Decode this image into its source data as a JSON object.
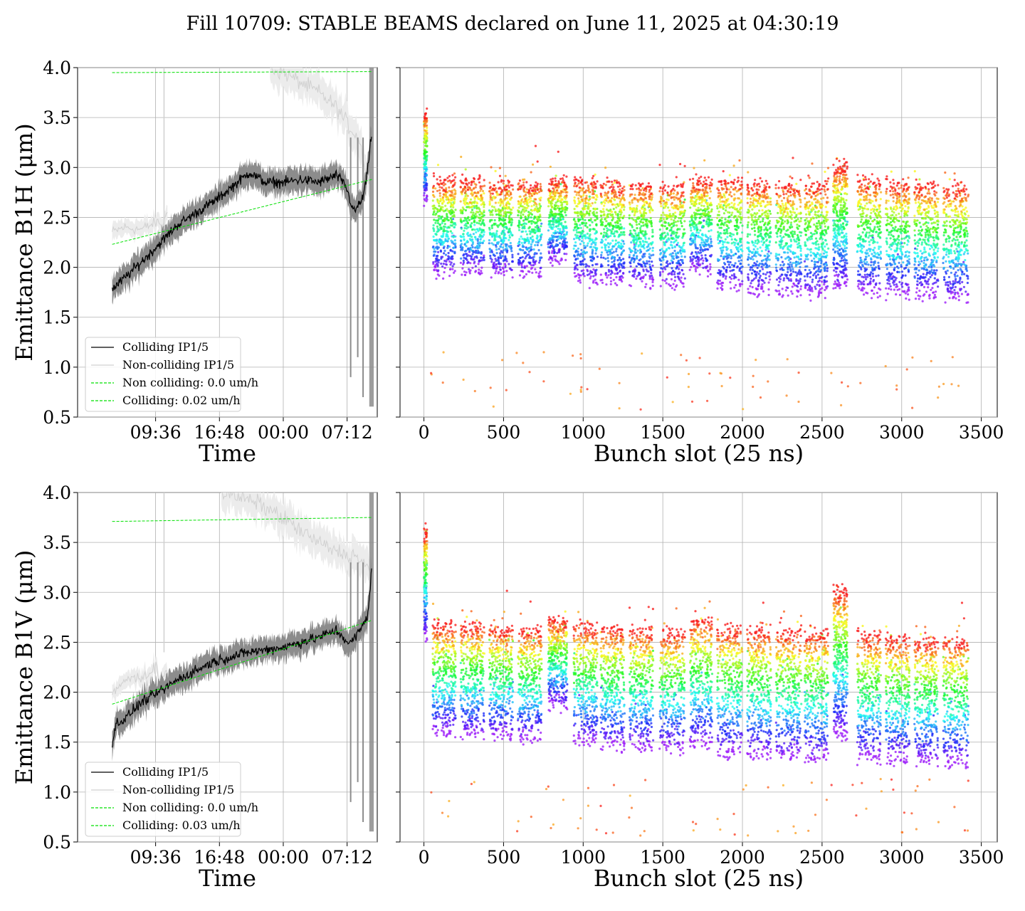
{
  "title": "Fill 10709: STABLE BEAMS declared on June 11, 2025 at 04:30:19",
  "colors": {
    "colliding": "#000000",
    "non_colliding": "#d0d0d0",
    "band_colliding": "#8c8c8c",
    "band_non_colliding": "#ececec",
    "fit": "#00e000",
    "grid": "#b0b0b0"
  },
  "chart_data": [
    {
      "type": "line",
      "panel": "time-B1H",
      "xlabel": "Time",
      "ylabel": "Emittance B1H (μm)",
      "ylim": [
        0.5,
        4.0
      ],
      "yticks": [
        "0.5",
        "1.0",
        "1.5",
        "2.0",
        "2.5",
        "3.0",
        "3.5",
        "4.0"
      ],
      "xticks": [
        "09:36",
        "16:48",
        "00:00",
        "07:12"
      ],
      "xtick_hours": [
        9.6,
        16.8,
        24.0,
        31.2
      ],
      "xlim_hours": [
        0.8,
        34.6
      ],
      "grid": true,
      "legend_position": "lower-left",
      "legend": [
        "Colliding IP1/5",
        "Non-colliding IP1/5",
        "Non colliding: 0.0 um/h",
        "Colliding: 0.02 um/h"
      ],
      "series": [
        {
          "name": "Colliding IP1/5",
          "x_hours": [
            4.7,
            6.2,
            9.0,
            12.0,
            16.5,
            20.2,
            22.0,
            24.0,
            26.0,
            28.0,
            30.0,
            31.0,
            32.0,
            33.0,
            33.5,
            34.0
          ],
          "values": [
            1.78,
            1.9,
            2.14,
            2.42,
            2.68,
            2.95,
            2.85,
            2.85,
            2.88,
            2.85,
            2.92,
            2.82,
            2.55,
            2.7,
            2.95,
            3.38
          ]
        },
        {
          "name": "Non-colliding IP1/5",
          "x_hours": [
            4.7,
            6.0,
            8.0,
            9.7,
            10.0,
            10.5,
            10.6,
            11.0
          ],
          "values": [
            2.35,
            2.4,
            2.38,
            2.45,
            2.45,
            2.4,
            2.47,
            2.6
          ]
        },
        {
          "name": "Non-colliding IP1/5 (upper)",
          "x_hours": [
            22.5,
            24.0,
            26.0,
            28.0,
            30.0,
            31.5,
            32.5,
            33.5,
            34.0
          ],
          "values": [
            4.0,
            3.95,
            3.85,
            3.75,
            3.6,
            3.4,
            3.3,
            2.9,
            2.8
          ]
        },
        {
          "name": "Non colliding: 0.0 um/h",
          "x_hours": [
            4.7,
            34.0
          ],
          "values": [
            3.95,
            3.96
          ]
        },
        {
          "name": "Colliding: 0.02 um/h",
          "x_hours": [
            4.7,
            34.0
          ],
          "values": [
            2.23,
            2.88
          ]
        }
      ]
    },
    {
      "type": "scatter",
      "panel": "bunch-B1H",
      "xlabel": "Bunch slot (25 ns)",
      "ylim": [
        0.5,
        4.0
      ],
      "xlim": [
        -150,
        3600
      ],
      "xticks": [
        0,
        500,
        1000,
        1500,
        2000,
        2500,
        3000,
        3500
      ],
      "grid": true,
      "colormap": "rainbow (early = violet, late = red)",
      "trains": [
        [
          0,
          20
        ],
        [
          55,
          200
        ],
        [
          230,
          380
        ],
        [
          410,
          560
        ],
        [
          590,
          740
        ],
        [
          780,
          900
        ],
        [
          940,
          1090
        ],
        [
          1110,
          1260
        ],
        [
          1290,
          1440
        ],
        [
          1480,
          1640
        ],
        [
          1670,
          1810
        ],
        [
          1840,
          2000
        ],
        [
          2030,
          2180
        ],
        [
          2210,
          2370
        ],
        [
          2390,
          2540
        ],
        [
          2570,
          2660
        ],
        [
          2720,
          2870
        ],
        [
          2900,
          3050
        ],
        [
          3080,
          3230
        ],
        [
          3260,
          3420
        ]
      ],
      "emittance_start": [
        2.7,
        1.98,
        1.98,
        1.97,
        1.96,
        2.1,
        1.9,
        1.88,
        1.87,
        1.86,
        2.0,
        1.83,
        1.8,
        1.78,
        1.76,
        1.85,
        1.78,
        1.76,
        1.74,
        1.72
      ],
      "emittance_end": [
        3.5,
        2.85,
        2.85,
        2.82,
        2.82,
        2.85,
        2.85,
        2.82,
        2.8,
        2.78,
        2.85,
        2.85,
        2.82,
        2.8,
        2.8,
        3.0,
        2.85,
        2.82,
        2.8,
        2.78
      ]
    },
    {
      "type": "line",
      "panel": "time-B1V",
      "xlabel": "Time",
      "ylabel": "Emittance B1V (μm)",
      "ylim": [
        0.5,
        4.0
      ],
      "yticks": [
        "0.5",
        "1.0",
        "1.5",
        "2.0",
        "2.5",
        "3.0",
        "3.5",
        "4.0"
      ],
      "xticks": [
        "09:36",
        "16:48",
        "00:00",
        "07:12"
      ],
      "xtick_hours": [
        9.6,
        16.8,
        24.0,
        31.2
      ],
      "xlim_hours": [
        0.8,
        34.6
      ],
      "grid": true,
      "legend_position": "lower-left",
      "legend": [
        "Colliding IP1/5",
        "Non-colliding IP1/5",
        "Non colliding: 0.0 um/h",
        "Colliding: 0.03 um/h"
      ],
      "series": [
        {
          "name": "Colliding IP1/5",
          "x_hours": [
            4.7,
            5.2,
            6.0,
            8.0,
            10.0,
            12.0,
            16.0,
            20.0,
            24.0,
            28.0,
            30.0,
            31.5,
            32.5,
            33.5,
            34.0
          ],
          "values": [
            1.48,
            1.7,
            1.72,
            1.9,
            2.0,
            2.12,
            2.3,
            2.4,
            2.45,
            2.55,
            2.62,
            2.48,
            2.6,
            2.75,
            3.28
          ]
        },
        {
          "name": "Non-colliding IP1/5",
          "x_hours": [
            4.7,
            6.0,
            8.0,
            9.7,
            10.0,
            10.5,
            11.0
          ],
          "values": [
            1.95,
            2.12,
            2.15,
            2.25,
            2.12,
            2.18,
            2.2
          ]
        },
        {
          "name": "Non-colliding IP1/5 (upper)",
          "x_hours": [
            17.0,
            19.0,
            21.0,
            23.0,
            25.0,
            27.0,
            29.0,
            31.0,
            32.5,
            33.5,
            34.0
          ],
          "values": [
            4.0,
            3.95,
            3.9,
            3.8,
            3.68,
            3.55,
            3.45,
            3.38,
            3.35,
            3.25,
            3.2
          ]
        },
        {
          "name": "Non colliding: 0.0 um/h",
          "x_hours": [
            4.7,
            34.0
          ],
          "values": [
            3.71,
            3.75
          ]
        },
        {
          "name": "Colliding: 0.03 um/h",
          "x_hours": [
            4.7,
            34.0
          ],
          "values": [
            1.88,
            2.72
          ]
        }
      ]
    },
    {
      "type": "scatter",
      "panel": "bunch-B1V",
      "xlabel": "Bunch slot (25 ns)",
      "ylim": [
        0.5,
        4.0
      ],
      "xlim": [
        -150,
        3600
      ],
      "xticks": [
        0,
        500,
        1000,
        1500,
        2000,
        2500,
        3000,
        3500
      ],
      "grid": true,
      "colormap": "rainbow (early = violet, late = red)",
      "trains": [
        [
          0,
          20
        ],
        [
          55,
          200
        ],
        [
          230,
          380
        ],
        [
          410,
          560
        ],
        [
          590,
          740
        ],
        [
          780,
          900
        ],
        [
          940,
          1090
        ],
        [
          1110,
          1260
        ],
        [
          1290,
          1440
        ],
        [
          1480,
          1640
        ],
        [
          1670,
          1810
        ],
        [
          1840,
          2000
        ],
        [
          2030,
          2180
        ],
        [
          2210,
          2370
        ],
        [
          2390,
          2540
        ],
        [
          2570,
          2660
        ],
        [
          2720,
          2870
        ],
        [
          2900,
          3050
        ],
        [
          3080,
          3230
        ],
        [
          3260,
          3420
        ]
      ],
      "emittance_start": [
        2.6,
        1.62,
        1.6,
        1.58,
        1.56,
        1.9,
        1.52,
        1.48,
        1.47,
        1.46,
        1.5,
        1.42,
        1.4,
        1.38,
        1.36,
        1.6,
        1.36,
        1.34,
        1.33,
        1.3
      ],
      "emittance_end": [
        3.6,
        2.65,
        2.65,
        2.62,
        2.6,
        2.7,
        2.65,
        2.62,
        2.6,
        2.58,
        2.7,
        2.62,
        2.6,
        2.58,
        2.58,
        3.0,
        2.55,
        2.52,
        2.5,
        2.5
      ]
    }
  ]
}
